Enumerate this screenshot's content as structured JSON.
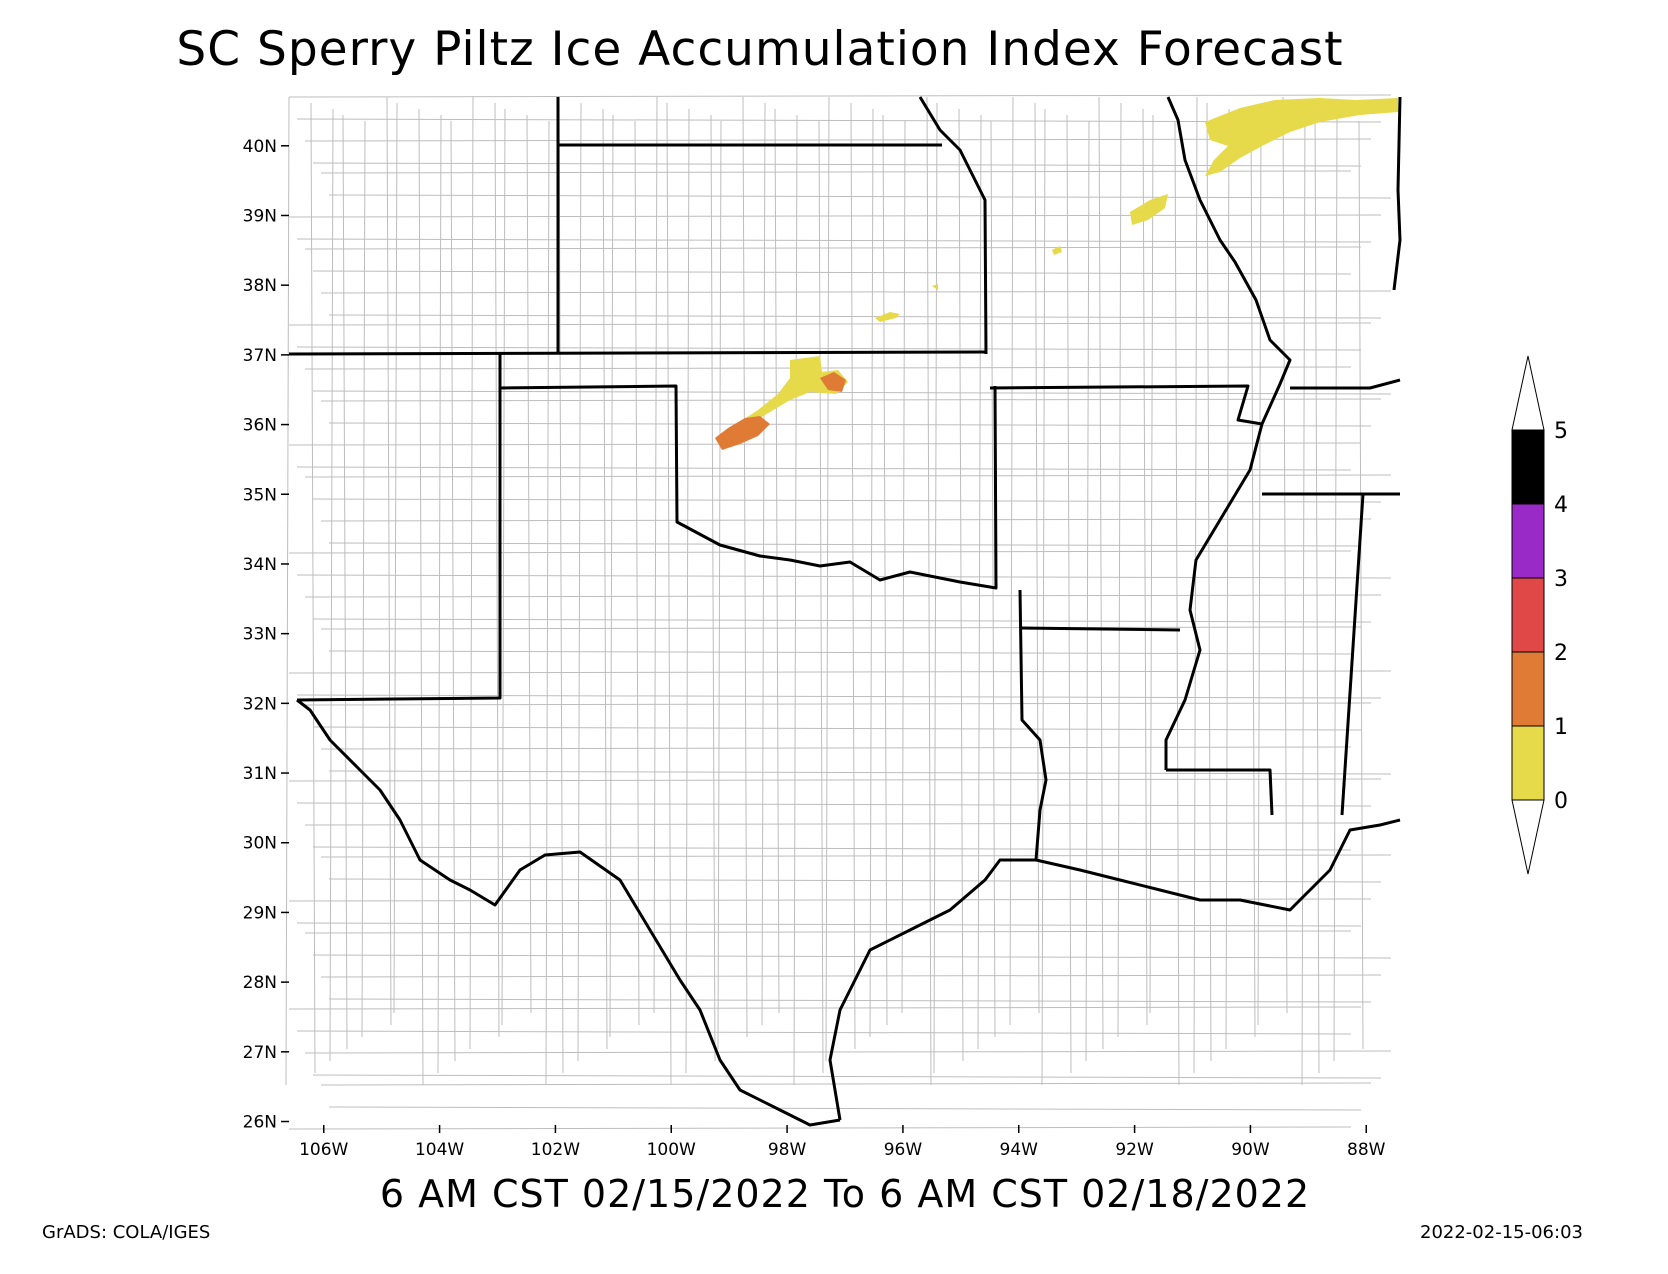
{
  "title": "SC Sperry Piltz Ice Accumulation Index Forecast",
  "valid_period": "6 AM CST 02/15/2022 To 6 AM CST 02/18/2022",
  "credit": "GrADS: COLA/IGES",
  "timestamp": "2022-02-15-06:03",
  "map": {
    "projection": "lat-lon",
    "lon_range": [
      -106.6,
      -87.4
    ],
    "lat_range": [
      25.95,
      40.7
    ],
    "lat_ticks": [
      "26N",
      "27N",
      "28N",
      "29N",
      "30N",
      "31N",
      "32N",
      "33N",
      "34N",
      "35N",
      "36N",
      "37N",
      "38N",
      "39N",
      "40N"
    ],
    "lon_ticks": [
      "106W",
      "104W",
      "102W",
      "100W",
      "98W",
      "96W",
      "94W",
      "92W",
      "90W",
      "88W"
    ],
    "region": "South Central US (TX, OK, KS, MO, AR, LA, MS, NM, IL)",
    "ice_areas": [
      {
        "name": "Northern Oklahoma band",
        "index": "0-1",
        "color": "#e6d94a"
      },
      {
        "name": "Northwest Oklahoma band",
        "index": "1-2",
        "color": "#e07b35"
      },
      {
        "name": "Central Missouri band",
        "index": "0-1",
        "color": "#e6d94a"
      },
      {
        "name": "West-central Illinois band",
        "index": "0-1",
        "color": "#e6d94a"
      }
    ]
  },
  "colorbar": {
    "labels": [
      "0",
      "1",
      "2",
      "3",
      "4",
      "5"
    ],
    "colors": [
      "#e6d94a",
      "#e07b35",
      "#e04848",
      "#9a2ac8",
      "#000000"
    ]
  }
}
